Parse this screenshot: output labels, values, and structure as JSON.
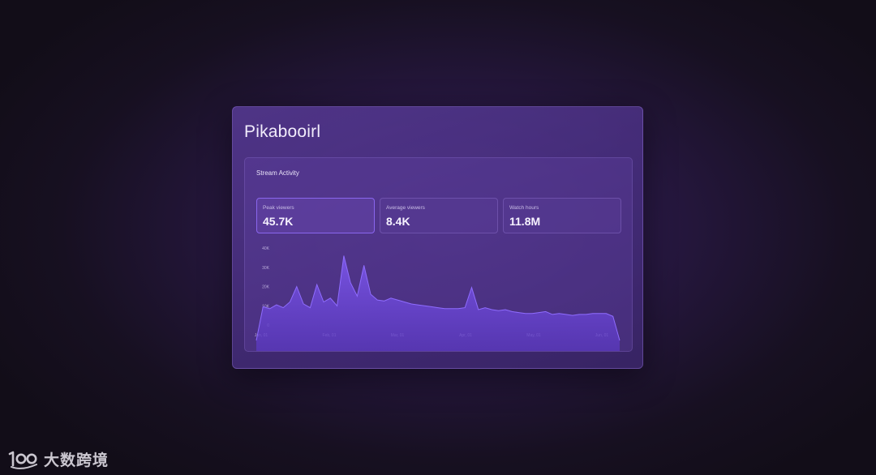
{
  "card": {
    "title": "Pikabooirl"
  },
  "panel": {
    "title": "Stream Activity"
  },
  "stats": [
    {
      "label": "Peak viewers",
      "value": "45.7K"
    },
    {
      "label": "Average viewers",
      "value": "8.4K"
    },
    {
      "label": "Watch hours",
      "value": "11.8M"
    }
  ],
  "colors": {
    "accent": "#8a66ee",
    "area_fill": "#6a45d6",
    "area_line": "#8f6cff"
  },
  "chart_data": {
    "type": "area",
    "y_ticks": [
      "0",
      "10K",
      "20K",
      "30K",
      "40K"
    ],
    "x_ticks": [
      "Jan, 01",
      "Feb, 01",
      "Mar, 01",
      "Apr, 01",
      "May, 01",
      "Jun, 01"
    ],
    "ylim": [
      0,
      40000
    ],
    "grid": false,
    "x": [
      "Jan 01",
      "Jan 04",
      "Jan 07",
      "Jan 10",
      "Jan 13",
      "Jan 16",
      "Jan 19",
      "Jan 21",
      "Jan 23",
      "Jan 25",
      "Jan 27",
      "Jan 28",
      "Jan 30",
      "Feb 01",
      "Feb 03",
      "Feb 05",
      "Feb 07",
      "Feb 09",
      "Feb 11",
      "Feb 12",
      "Feb 14",
      "Feb 16",
      "Feb 18",
      "Feb 20",
      "Feb 22",
      "Feb 25",
      "Feb 28",
      "Mar 01",
      "Mar 05",
      "Mar 09",
      "Mar 13",
      "Mar 17",
      "Mar 20",
      "Mar 23",
      "Mar 25",
      "Mar 28",
      "Apr 01",
      "Apr 05",
      "Apr 09",
      "Apr 13",
      "Apr 17",
      "Apr 21",
      "Apr 25",
      "Apr 29",
      "May 01",
      "May 05",
      "May 09",
      "May 13",
      "May 17",
      "May 21",
      "May 25",
      "May 29",
      "Jun 01",
      "Jun 03",
      "Jun 05"
    ],
    "values": [
      -8000,
      9500,
      8500,
      10500,
      9000,
      12000,
      20000,
      11000,
      9000,
      21000,
      12000,
      14000,
      10000,
      36000,
      22000,
      15000,
      31000,
      16000,
      13000,
      12500,
      14000,
      13000,
      12000,
      11000,
      10500,
      10000,
      9500,
      9000,
      8500,
      8500,
      8500,
      9000,
      19500,
      8000,
      9000,
      8000,
      7500,
      8000,
      7000,
      6500,
      6000,
      6000,
      6500,
      7000,
      5500,
      6000,
      5500,
      5000,
      5500,
      5500,
      6000,
      6000,
      6000,
      4500,
      -8000
    ]
  }
}
